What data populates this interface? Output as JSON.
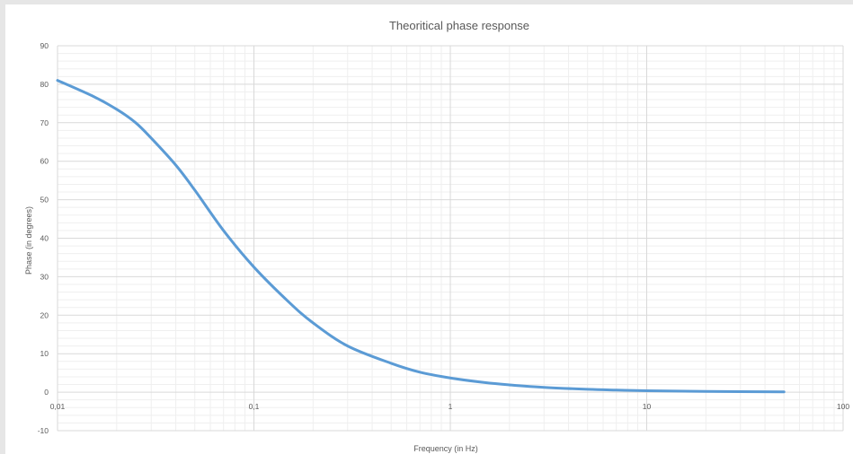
{
  "chart_data": {
    "type": "line",
    "title": "Theoritical phase response",
    "xlabel": "Frequency (in Hz)",
    "ylabel": "Phase (in degrees)",
    "x_scale": "log",
    "xlim": [
      0.01,
      100
    ],
    "ylim": [
      -10,
      90
    ],
    "x_ticks": [
      0.01,
      0.1,
      1,
      10,
      100
    ],
    "x_tick_labels": [
      "0,01",
      "0,1",
      "1",
      "10",
      "100"
    ],
    "y_ticks": [
      -10,
      0,
      10,
      20,
      30,
      40,
      50,
      60,
      70,
      80,
      90
    ],
    "y_tick_labels": [
      "-10",
      "0",
      "10",
      "20",
      "30",
      "40",
      "50",
      "60",
      "70",
      "80",
      "90"
    ],
    "grid": true,
    "minor_grid": true,
    "legend": false,
    "series": [
      {
        "color": "#5b9bd5",
        "x": [
          0.01,
          0.015,
          0.02,
          0.025,
          0.03,
          0.04,
          0.05,
          0.07,
          0.1,
          0.15,
          0.2,
          0.3,
          0.5,
          0.7,
          1,
          1.5,
          2,
          3,
          5,
          7,
          10,
          20,
          50
        ],
        "y": [
          81,
          77,
          73.5,
          70,
          66,
          59,
          52.5,
          42,
          32.5,
          23.5,
          18,
          12,
          7.5,
          5.2,
          3.7,
          2.5,
          1.9,
          1.25,
          0.75,
          0.55,
          0.38,
          0.19,
          0.08
        ]
      }
    ]
  }
}
